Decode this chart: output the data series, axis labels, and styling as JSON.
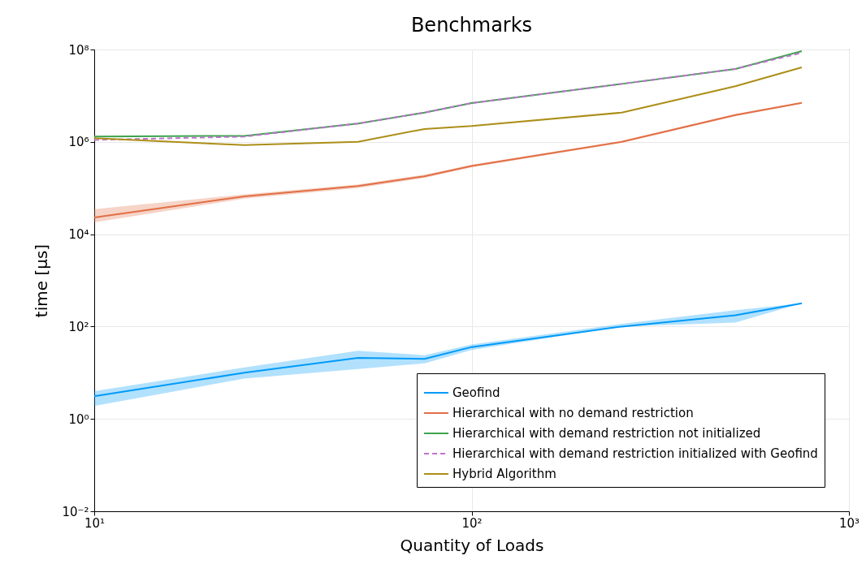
{
  "chart_data": {
    "type": "line",
    "title": "Benchmarks",
    "xlabel": "Quantity of Loads",
    "ylabel": "time [μs]",
    "log": "xy",
    "grid": true,
    "legend": "bottom right",
    "marker": "none",
    "line_style": "solid",
    "x": [
      10,
      25,
      50,
      75,
      100,
      250,
      500,
      750
    ],
    "xlim": [
      10,
      1000
    ],
    "xticks": [
      {
        "value": 10,
        "label": "10¹"
      },
      {
        "value": 100,
        "label": "10²"
      },
      {
        "value": 1000,
        "label": "10³"
      }
    ],
    "ylim": [
      0.01,
      100000000
    ],
    "yticks": [
      {
        "value": 0.01,
        "label": "10⁻²"
      },
      {
        "value": 1,
        "label": "10⁰"
      },
      {
        "value": 100,
        "label": "10²"
      },
      {
        "value": 10000,
        "label": "10⁴"
      },
      {
        "value": 1000000,
        "label": "10⁶"
      },
      {
        "value": 100000000,
        "label": "10⁸"
      }
    ],
    "series": [
      {
        "name": "Geofind",
        "color": "#009af9",
        "values": [
          3.1,
          10,
          21,
          20,
          36,
          100,
          175,
          320
        ],
        "lower": [
          1.9,
          7.5,
          12,
          16,
          31,
          100,
          122,
          320
        ],
        "upper": [
          4,
          13,
          30,
          24,
          41,
          115,
          225,
          320
        ]
      },
      {
        "name": "Hierarchical with no demand restriction",
        "color": "#e26f46",
        "values": [
          23000,
          66000,
          110000,
          180000,
          300000,
          1000000,
          3800000,
          7000000
        ],
        "lower": [
          18000,
          59000,
          100000,
          165000,
          280000,
          950000,
          3600000,
          6700000
        ],
        "upper": [
          35000,
          73000,
          120000,
          195000,
          320000,
          1050000,
          4000000,
          7300000
        ]
      },
      {
        "name": "Hierarchical with demand restriction not initialized",
        "color": "#3da44d",
        "values": [
          1300000,
          1350000,
          2500000,
          4300000,
          6900000,
          18000000,
          38000000,
          92000000
        ]
      },
      {
        "name": "Hierarchical with demand restriction initialized with Geofind",
        "color": "#c271d2",
        "line_style": "dashed",
        "values": [
          1100000,
          1300000,
          2500000,
          4300000,
          6900000,
          18000000,
          38000000,
          85000000
        ]
      },
      {
        "name": "Hybrid Algorithm",
        "color": "#ac8e18",
        "values": [
          1200000,
          850000,
          1000000,
          1900000,
          2200000,
          4300000,
          16000000,
          41000000
        ]
      }
    ]
  }
}
